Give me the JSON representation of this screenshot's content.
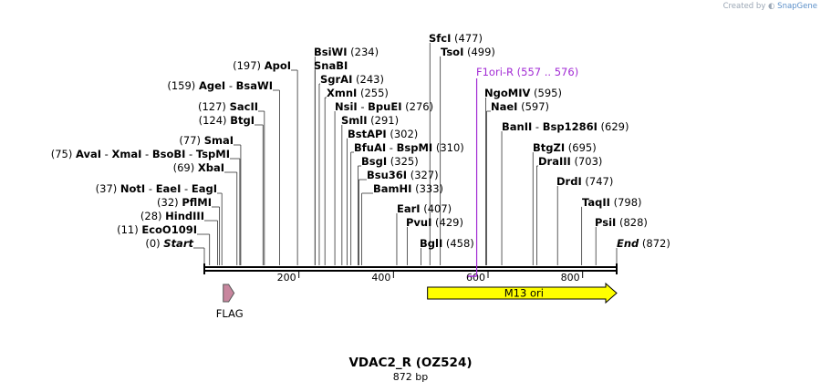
{
  "credit": {
    "prefix": "Created by",
    "brand": "SnapGene"
  },
  "title": "VDAC2_R (OZ524)",
  "length_label": "872 bp",
  "sequence_length": 872,
  "ticks": [
    "200",
    "400",
    "600",
    "800"
  ],
  "tick_values": [
    200,
    400,
    600,
    800
  ],
  "sites": [
    {
      "parts": [
        "Start"
      ],
      "num": "(0)",
      "pos": 0,
      "italic": true
    },
    {
      "parts": [
        "EcoO109I"
      ],
      "num": "(11)",
      "pos": 11
    },
    {
      "parts": [
        "HindIII"
      ],
      "num": "(28)",
      "pos": 28
    },
    {
      "parts": [
        "PflMI"
      ],
      "num": "(32)",
      "pos": 32
    },
    {
      "parts": [
        "NotI",
        "EaeI",
        "EagI"
      ],
      "num": "(37)",
      "pos": 37
    },
    {
      "parts": [
        "XbaI"
      ],
      "num": "(69)",
      "pos": 69
    },
    {
      "parts": [
        "AvaI",
        "XmaI",
        "BsoBI",
        "TspMI"
      ],
      "num": "(75)",
      "pos": 75
    },
    {
      "parts": [
        "SmaI"
      ],
      "num": "(77)",
      "pos": 77
    },
    {
      "parts": [
        "BtgI"
      ],
      "num": "(124)",
      "pos": 124
    },
    {
      "parts": [
        "SacII"
      ],
      "num": "(127)",
      "pos": 127
    },
    {
      "parts": [
        "AgeI",
        "BsaWI"
      ],
      "num": "(159)",
      "pos": 159
    },
    {
      "parts": [
        "ApoI"
      ],
      "num": "(197)",
      "pos": 197
    },
    {
      "parts": [
        "BsiWI"
      ],
      "num": "(234)",
      "pos": 234
    },
    {
      "parts": [
        "SnaBI"
      ],
      "num": "",
      "pos": 234
    },
    {
      "parts": [
        "SgrAI"
      ],
      "num": "(243)",
      "pos": 243
    },
    {
      "parts": [
        "XmnI"
      ],
      "num": "(255)",
      "pos": 255
    },
    {
      "parts": [
        "NsiI",
        "BpuEI"
      ],
      "num": "(276)",
      "pos": 276
    },
    {
      "parts": [
        "SmlI"
      ],
      "num": "(291)",
      "pos": 291
    },
    {
      "parts": [
        "BstAPI"
      ],
      "num": "(302)",
      "pos": 302
    },
    {
      "parts": [
        "BfuAI",
        "BspMI"
      ],
      "num": "(310)",
      "pos": 310
    },
    {
      "parts": [
        "BsgI"
      ],
      "num": "(325)",
      "pos": 325
    },
    {
      "parts": [
        "Bsu36I"
      ],
      "num": "(327)",
      "pos": 327
    },
    {
      "parts": [
        "BamHI"
      ],
      "num": "(333)",
      "pos": 333
    },
    {
      "parts": [
        "EarI"
      ],
      "num": "(407)",
      "pos": 407
    },
    {
      "parts": [
        "PvuI"
      ],
      "num": "(429)",
      "pos": 429
    },
    {
      "parts": [
        "BglI"
      ],
      "num": "(458)",
      "pos": 458
    },
    {
      "parts": [
        "SfcI"
      ],
      "num": "(477)",
      "pos": 477
    },
    {
      "parts": [
        "TsoI"
      ],
      "num": "(499)",
      "pos": 499
    },
    {
      "parts": [
        "NgoMIV"
      ],
      "num": "(595)",
      "pos": 595
    },
    {
      "parts": [
        "NaeI"
      ],
      "num": "(597)",
      "pos": 597
    },
    {
      "parts": [
        "BanII",
        "Bsp1286I"
      ],
      "num": "(629)",
      "pos": 629
    },
    {
      "parts": [
        "BtgZI"
      ],
      "num": "(695)",
      "pos": 695
    },
    {
      "parts": [
        "DraIII"
      ],
      "num": "(703)",
      "pos": 703
    },
    {
      "parts": [
        "DrdI"
      ],
      "num": "(747)",
      "pos": 747
    },
    {
      "parts": [
        "TaqII"
      ],
      "num": "(798)",
      "pos": 798
    },
    {
      "parts": [
        "PsiI"
      ],
      "num": "(828)",
      "pos": 828
    },
    {
      "parts": [
        "End"
      ],
      "num": "(872)",
      "pos": 872,
      "italic": true
    }
  ],
  "primer": {
    "name": "F1ori-R",
    "range": "(557 .. 576)",
    "start": 557,
    "end": 576,
    "color": "#a22bd4"
  },
  "features": [
    {
      "name": "FLAG",
      "start": 40,
      "end": 63,
      "color": "#c8869e",
      "label_below": true
    },
    {
      "name": "M13 ori",
      "start": 472,
      "end": 872,
      "color": "#ffff00",
      "label_inside": true
    }
  ]
}
